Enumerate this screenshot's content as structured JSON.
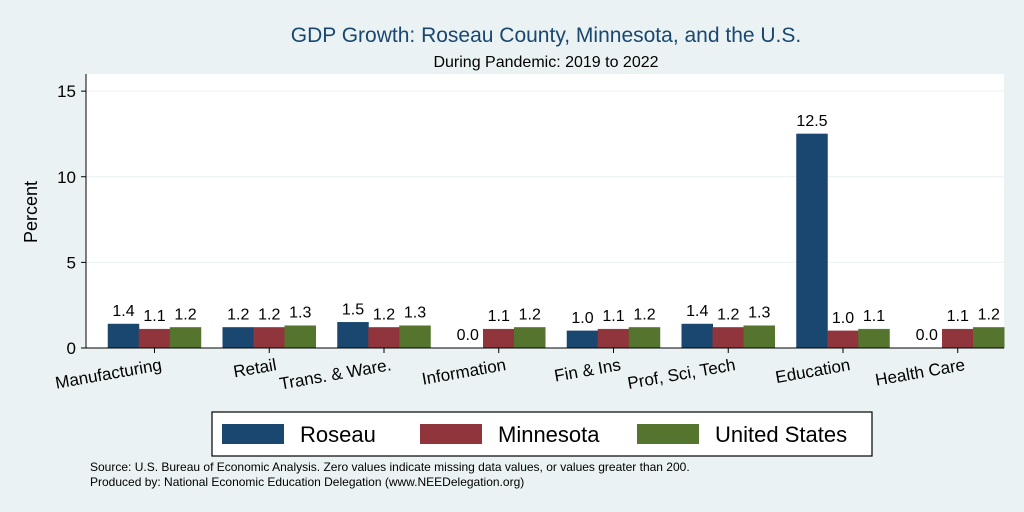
{
  "chart_data": {
    "type": "bar",
    "title": "GDP Growth: Roseau County, Minnesota, and the U.S.",
    "subtitle": "During Pandemic: 2019 to 2022",
    "ylabel": "Percent",
    "xlabel": "",
    "ylim": [
      0,
      16
    ],
    "yticks": [
      0,
      5,
      10,
      15
    ],
    "grid": true,
    "legend_position": "bottom",
    "categories": [
      "Manufacturing",
      "Retail",
      "Trans. & Ware.",
      "Information",
      "Fin & Ins",
      "Prof, Sci, Tech",
      "Education",
      "Health Care"
    ],
    "series": [
      {
        "name": "Roseau",
        "color": "#1a476f",
        "values": [
          1.4,
          1.2,
          1.5,
          0.0,
          1.0,
          1.4,
          12.5,
          0.0
        ],
        "labels": [
          "1.4",
          "1.2",
          "1.5",
          "0.0",
          "1.0",
          "1.4",
          "12.5",
          "0.0"
        ]
      },
      {
        "name": "Minnesota",
        "color": "#90353b",
        "values": [
          1.1,
          1.2,
          1.2,
          1.1,
          1.1,
          1.2,
          1.0,
          1.1
        ],
        "labels": [
          "1.1",
          "1.2",
          "1.2",
          "1.1",
          "1.1",
          "1.2",
          "1.0",
          "1.1"
        ]
      },
      {
        "name": "United States",
        "color": "#55752f",
        "values": [
          1.2,
          1.3,
          1.3,
          1.2,
          1.2,
          1.3,
          1.1,
          1.2
        ],
        "labels": [
          "1.2",
          "1.3",
          "1.3",
          "1.2",
          "1.2",
          "1.3",
          "1.1",
          "1.2"
        ]
      }
    ],
    "notes": [
      "Source: U.S. Bureau of Economic Analysis. Zero values indicate missing data values, or values greater than 200.",
      "Produced by: National Economic Education Delegation (www.NEEDelegation.org)"
    ]
  }
}
